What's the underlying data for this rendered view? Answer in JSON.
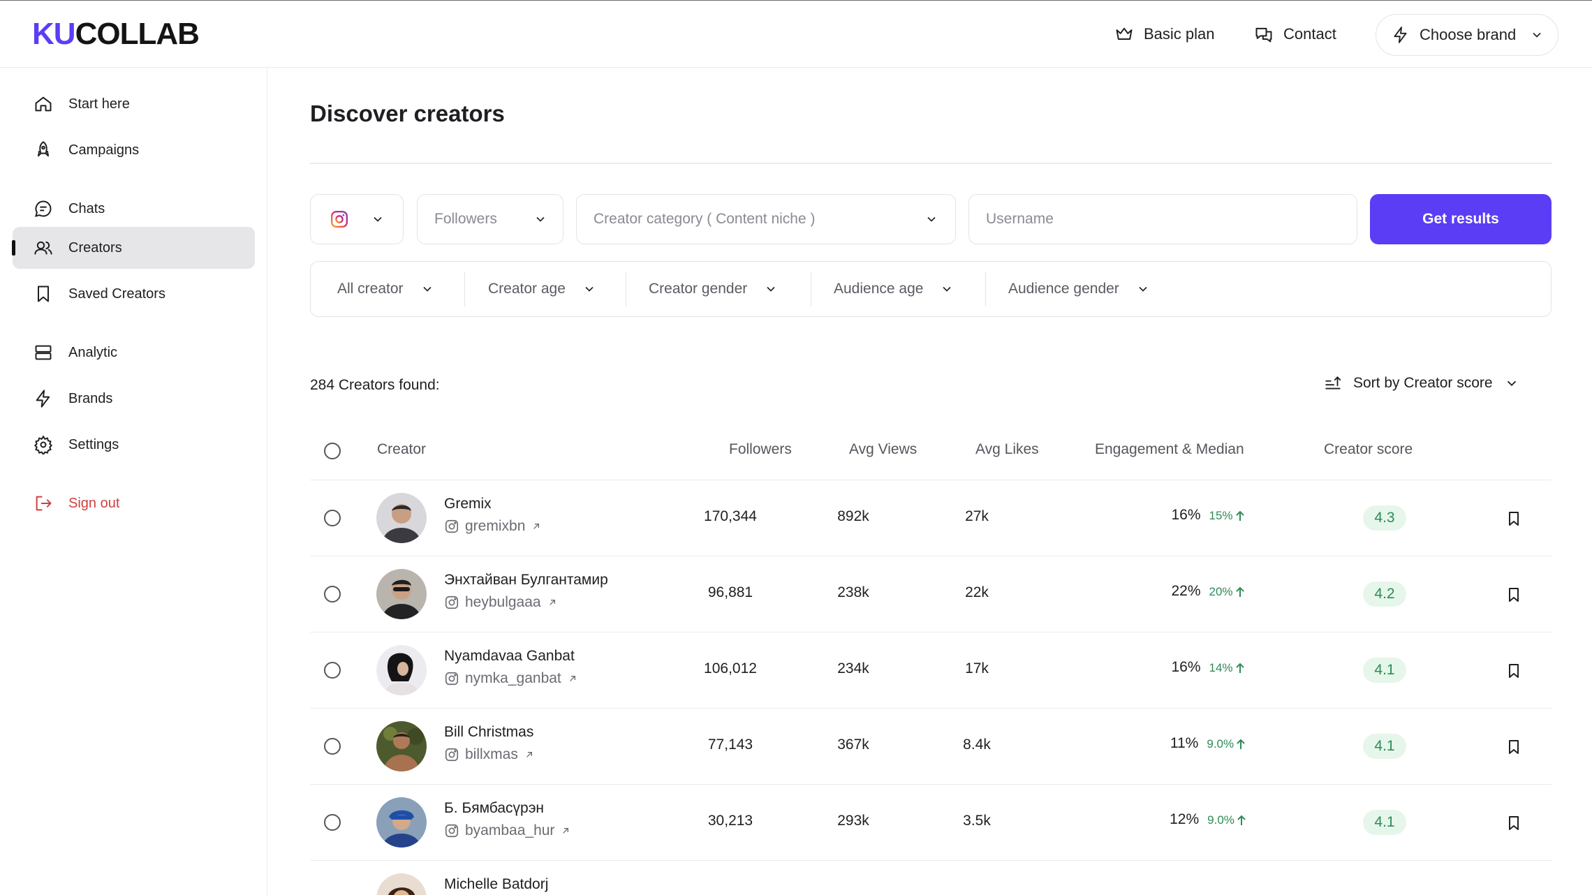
{
  "header": {
    "logo_part1": "KU",
    "logo_part2": "COLLAB",
    "plan_label": "Basic plan",
    "contact_label": "Contact",
    "brand_label": "Choose brand"
  },
  "sidebar": {
    "items": [
      {
        "label": "Start here",
        "icon": "home-icon"
      },
      {
        "label": "Campaigns",
        "icon": "rocket-icon"
      },
      {
        "label": "Chats",
        "icon": "chat-icon"
      },
      {
        "label": "Creators",
        "icon": "users-icon",
        "active": true
      },
      {
        "label": "Saved Creators",
        "icon": "bookmark-icon"
      },
      {
        "label": "Analytic",
        "icon": "stack-icon"
      },
      {
        "label": "Brands",
        "icon": "bolt-icon"
      },
      {
        "label": "Settings",
        "icon": "gear-icon"
      },
      {
        "label": "Sign out",
        "icon": "sign-out-icon"
      }
    ]
  },
  "main": {
    "title": "Discover creators",
    "search": {
      "platform_icon": "instagram-icon",
      "followers_placeholder": "Followers",
      "category_placeholder": "Creator category ( Content niche )",
      "username_placeholder": "Username",
      "submit_label": "Get results"
    },
    "filters": [
      "All creator",
      "Creator age",
      "Creator gender",
      "Audience age",
      "Audience gender"
    ],
    "results_count": "284 Creators found:",
    "sort_label": "Sort by Creator score",
    "columns": {
      "creator": "Creator",
      "followers": "Followers",
      "avg_views": "Avg Views",
      "avg_likes": "Avg Likes",
      "engagement": "Engagement & Median",
      "score": "Creator score"
    },
    "rows": [
      {
        "name": "Gremix",
        "handle": "gremixbn",
        "followers": "170,344",
        "avg_views": "892k",
        "avg_likes": "27k",
        "engagement": "16%",
        "median": "15%",
        "score": "4.3"
      },
      {
        "name": "Энхтайван Булгантамир",
        "handle": "heybulgaaa",
        "followers": "96,881",
        "avg_views": "238k",
        "avg_likes": "22k",
        "engagement": "22%",
        "median": "20%",
        "score": "4.2"
      },
      {
        "name": "Nyamdavaa Ganbat",
        "handle": "nymka_ganbat",
        "followers": "106,012",
        "avg_views": "234k",
        "avg_likes": "17k",
        "engagement": "16%",
        "median": "14%",
        "score": "4.1"
      },
      {
        "name": "Bill Christmas",
        "handle": "billxmas",
        "followers": "77,143",
        "avg_views": "367k",
        "avg_likes": "8.4k",
        "engagement": "11%",
        "median": "9.0%",
        "score": "4.1"
      },
      {
        "name": "Б. Бямбасүрэн",
        "handle": "byambaa_hur",
        "followers": "30,213",
        "avg_views": "293k",
        "avg_likes": "3.5k",
        "engagement": "12%",
        "median": "9.0%",
        "score": "4.1"
      },
      {
        "name": "Michelle Batdorj",
        "handle": "",
        "followers": "",
        "avg_views": "",
        "avg_likes": "",
        "engagement": "",
        "median": "",
        "score": ""
      }
    ]
  },
  "colors": {
    "accent": "#5b3df5",
    "score_bg": "#e6f6ea",
    "score_text": "#2e8b57",
    "signout": "#d04040"
  }
}
